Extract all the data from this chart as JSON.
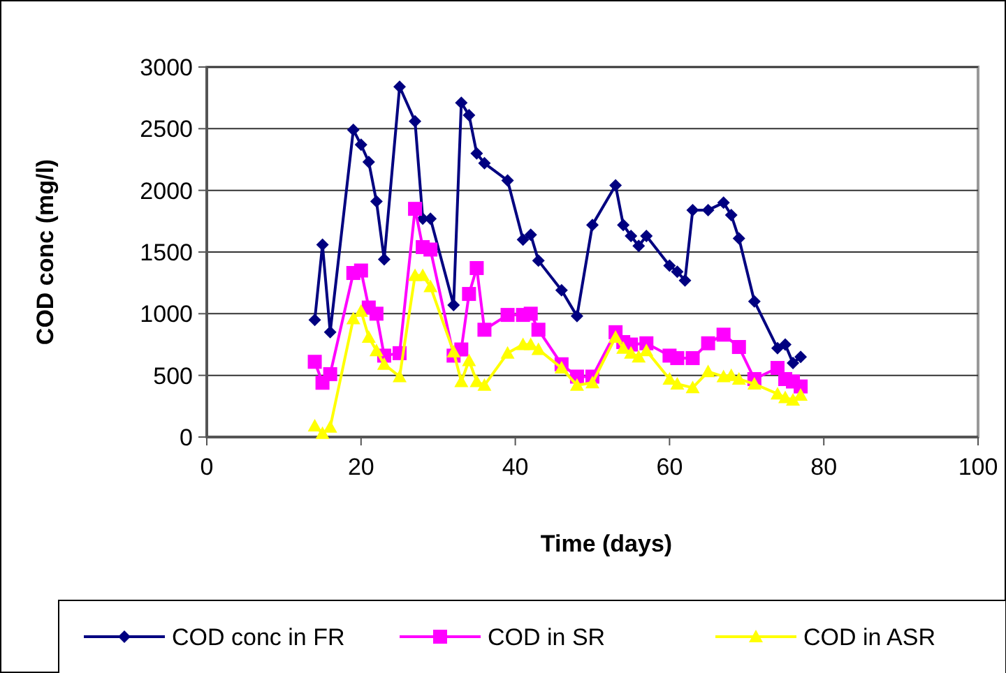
{
  "chart_data": {
    "type": "line",
    "xlabel": "Time (days)",
    "ylabel": "COD conc (mg/l)",
    "xlim": [
      0,
      100
    ],
    "xticks": [
      0,
      20,
      40,
      60,
      80,
      100
    ],
    "ylim": [
      0,
      3000
    ],
    "yticks": [
      0,
      500,
      1000,
      1500,
      2000,
      2500,
      3000
    ],
    "grid": "y",
    "legend": "bottom",
    "line_style": "solid",
    "series": [
      {
        "name": "COD conc in FR",
        "color": "#000080",
        "marker": "diamond",
        "x": [
          14,
          15,
          16,
          19,
          20,
          21,
          22,
          23,
          25,
          27,
          28,
          29,
          32,
          33,
          34,
          35,
          36,
          39,
          41,
          42,
          43,
          46,
          48,
          50,
          53,
          54,
          55,
          56,
          57,
          60,
          61,
          62,
          63,
          65,
          67,
          68,
          69,
          71,
          74,
          75,
          76,
          77
        ],
        "values": [
          950,
          1560,
          850,
          2490,
          2370,
          2230,
          1910,
          1440,
          2840,
          2560,
          1770,
          1770,
          1070,
          2710,
          2610,
          2300,
          2220,
          2080,
          1600,
          1640,
          1430,
          1190,
          980,
          1720,
          2040,
          1720,
          1630,
          1550,
          1630,
          1390,
          1340,
          1270,
          1840,
          1840,
          1900,
          1800,
          1610,
          1100,
          720,
          750,
          600,
          650
        ]
      },
      {
        "name": "COD in SR",
        "color": "#ff00ff",
        "marker": "square",
        "x": [
          14,
          15,
          16,
          19,
          20,
          21,
          22,
          23,
          25,
          27,
          28,
          29,
          32,
          33,
          34,
          35,
          36,
          39,
          41,
          42,
          43,
          46,
          48,
          50,
          53,
          54,
          55,
          57,
          60,
          61,
          63,
          65,
          67,
          69,
          71,
          74,
          75,
          76,
          77
        ],
        "values": [
          610,
          440,
          510,
          1330,
          1350,
          1050,
          1000,
          660,
          680,
          1850,
          1540,
          1520,
          660,
          710,
          1160,
          1370,
          870,
          990,
          990,
          1000,
          870,
          590,
          490,
          490,
          850,
          770,
          750,
          760,
          660,
          640,
          640,
          760,
          830,
          730,
          470,
          560,
          470,
          450,
          410
        ]
      },
      {
        "name": "COD in ASR",
        "color": "#ffff00",
        "marker": "triangle",
        "x": [
          14,
          15,
          16,
          19,
          20,
          21,
          22,
          23,
          25,
          27,
          28,
          29,
          32,
          33,
          34,
          35,
          36,
          39,
          41,
          42,
          43,
          46,
          48,
          50,
          53,
          54,
          55,
          56,
          57,
          60,
          61,
          63,
          65,
          67,
          68,
          69,
          71,
          74,
          75,
          76,
          77
        ],
        "values": [
          90,
          30,
          80,
          960,
          1020,
          810,
          700,
          590,
          490,
          1310,
          1310,
          1220,
          690,
          450,
          620,
          450,
          420,
          680,
          750,
          750,
          710,
          560,
          420,
          440,
          810,
          720,
          680,
          650,
          700,
          470,
          430,
          400,
          530,
          490,
          500,
          470,
          430,
          350,
          320,
          300,
          340
        ]
      }
    ]
  }
}
